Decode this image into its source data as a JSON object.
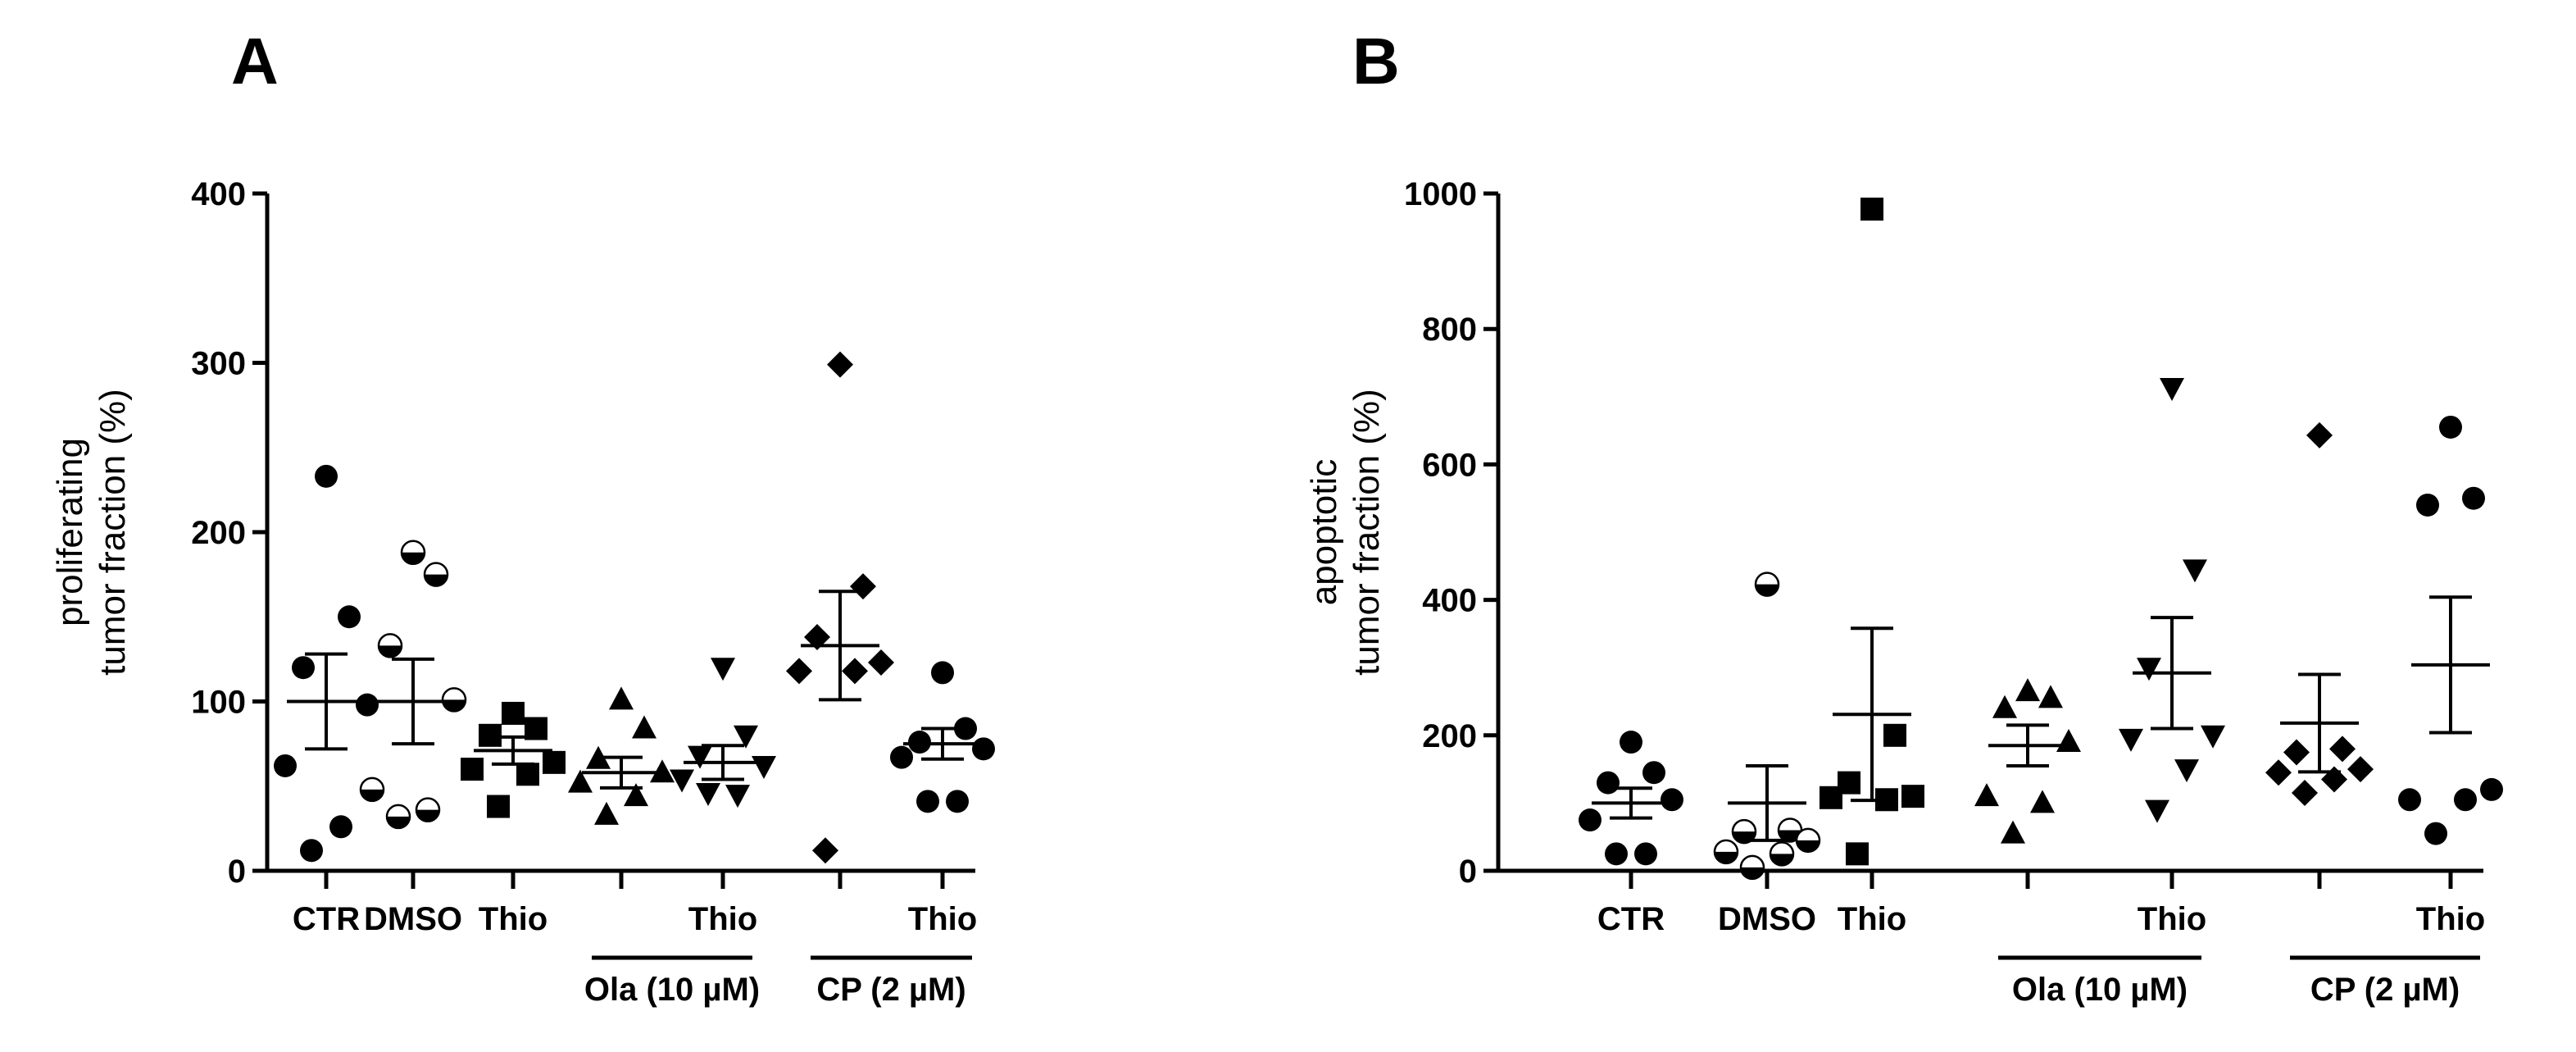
{
  "figure": {
    "panels": [
      "A",
      "B"
    ]
  },
  "chart_data": [
    {
      "panel_label": "A",
      "type": "scatter",
      "ylabel_lines": [
        "proliferating",
        "tumor fraction (%)"
      ],
      "ylim": [
        0,
        400
      ],
      "yticks": [
        0,
        100,
        200,
        300,
        400
      ],
      "categories": [
        "CTR",
        "DMSO",
        "Thio",
        "",
        "Thio",
        "",
        "Thio"
      ],
      "groups": [
        {
          "label": "Ola (10 µM)",
          "from": 3,
          "to": 4
        },
        {
          "label": "CP (2 µM)",
          "from": 5,
          "to": 6
        }
      ],
      "series": [
        {
          "name": "CTR",
          "marker": "circle",
          "values": [
            233,
            150,
            120,
            98,
            62,
            26,
            12
          ],
          "mean": 100,
          "sem": 28
        },
        {
          "name": "DMSO",
          "marker": "half-circle",
          "values": [
            188,
            175,
            133,
            101,
            48,
            36,
            32
          ],
          "mean": 100,
          "sem": 25
        },
        {
          "name": "Thio",
          "marker": "square",
          "values": [
            93,
            84,
            80,
            64,
            60,
            57,
            38
          ],
          "mean": 71,
          "sem": 8
        },
        {
          "name": "Ola (10 µM)",
          "marker": "triangle-up",
          "values": [
            101,
            84,
            66,
            58,
            52,
            44,
            33
          ],
          "mean": 58,
          "sem": 9
        },
        {
          "name": "Ola (10 µM) + Thio",
          "marker": "triangle-down",
          "values": [
            120,
            80,
            68,
            62,
            54,
            45,
            46
          ],
          "mean": 64,
          "sem": 10
        },
        {
          "name": "CP (2 µM)",
          "marker": "diamond",
          "values": [
            299,
            168,
            138,
            123,
            118,
            118,
            12
          ],
          "mean": 133,
          "sem": 32
        },
        {
          "name": "CP (2 µM) + Thio",
          "marker": "circle",
          "values": [
            117,
            84,
            76,
            72,
            67,
            41,
            41
          ],
          "mean": 75,
          "sem": 9
        }
      ]
    },
    {
      "panel_label": "B",
      "type": "scatter",
      "ylabel_lines": [
        "apoptotic",
        "tumor fraction (%)"
      ],
      "ylim": [
        0,
        1000
      ],
      "yticks": [
        0,
        200,
        400,
        600,
        800,
        1000
      ],
      "categories": [
        "CTR",
        "DMSO",
        "Thio",
        "",
        "Thio",
        "",
        "Thio"
      ],
      "groups": [
        {
          "label": "Ola (10 µM)",
          "from": 3,
          "to": 4
        },
        {
          "label": "CP (2 µM)",
          "from": 5,
          "to": 6
        }
      ],
      "series": [
        {
          "name": "CTR",
          "marker": "circle",
          "values": [
            190,
            145,
            130,
            105,
            75,
            25,
            25
          ],
          "mean": 100,
          "sem": 22
        },
        {
          "name": "DMSO",
          "marker": "half-circle",
          "values": [
            423,
            60,
            58,
            45,
            28,
            25,
            5
          ],
          "mean": 100,
          "sem": 55
        },
        {
          "name": "Thio",
          "marker": "square",
          "values": [
            977,
            200,
            130,
            110,
            108,
            105,
            25
          ],
          "mean": 231,
          "sem": 127
        },
        {
          "name": "Ola (10 µM)",
          "marker": "triangle-up",
          "values": [
            265,
            255,
            240,
            190,
            110,
            100,
            55
          ],
          "mean": 185,
          "sem": 30
        },
        {
          "name": "Ola (10 µM) + Thio",
          "marker": "triangle-down",
          "values": [
            713,
            445,
            300,
            200,
            195,
            150,
            90
          ],
          "mean": 292,
          "sem": 82
        },
        {
          "name": "CP (2 µM)",
          "marker": "diamond",
          "values": [
            643,
            180,
            175,
            150,
            145,
            135,
            115
          ],
          "mean": 218,
          "sem": 72
        },
        {
          "name": "CP (2 µM) + Thio",
          "marker": "circle",
          "values": [
            655,
            550,
            540,
            120,
            105,
            105,
            55
          ],
          "mean": 304,
          "sem": 100
        }
      ]
    }
  ]
}
